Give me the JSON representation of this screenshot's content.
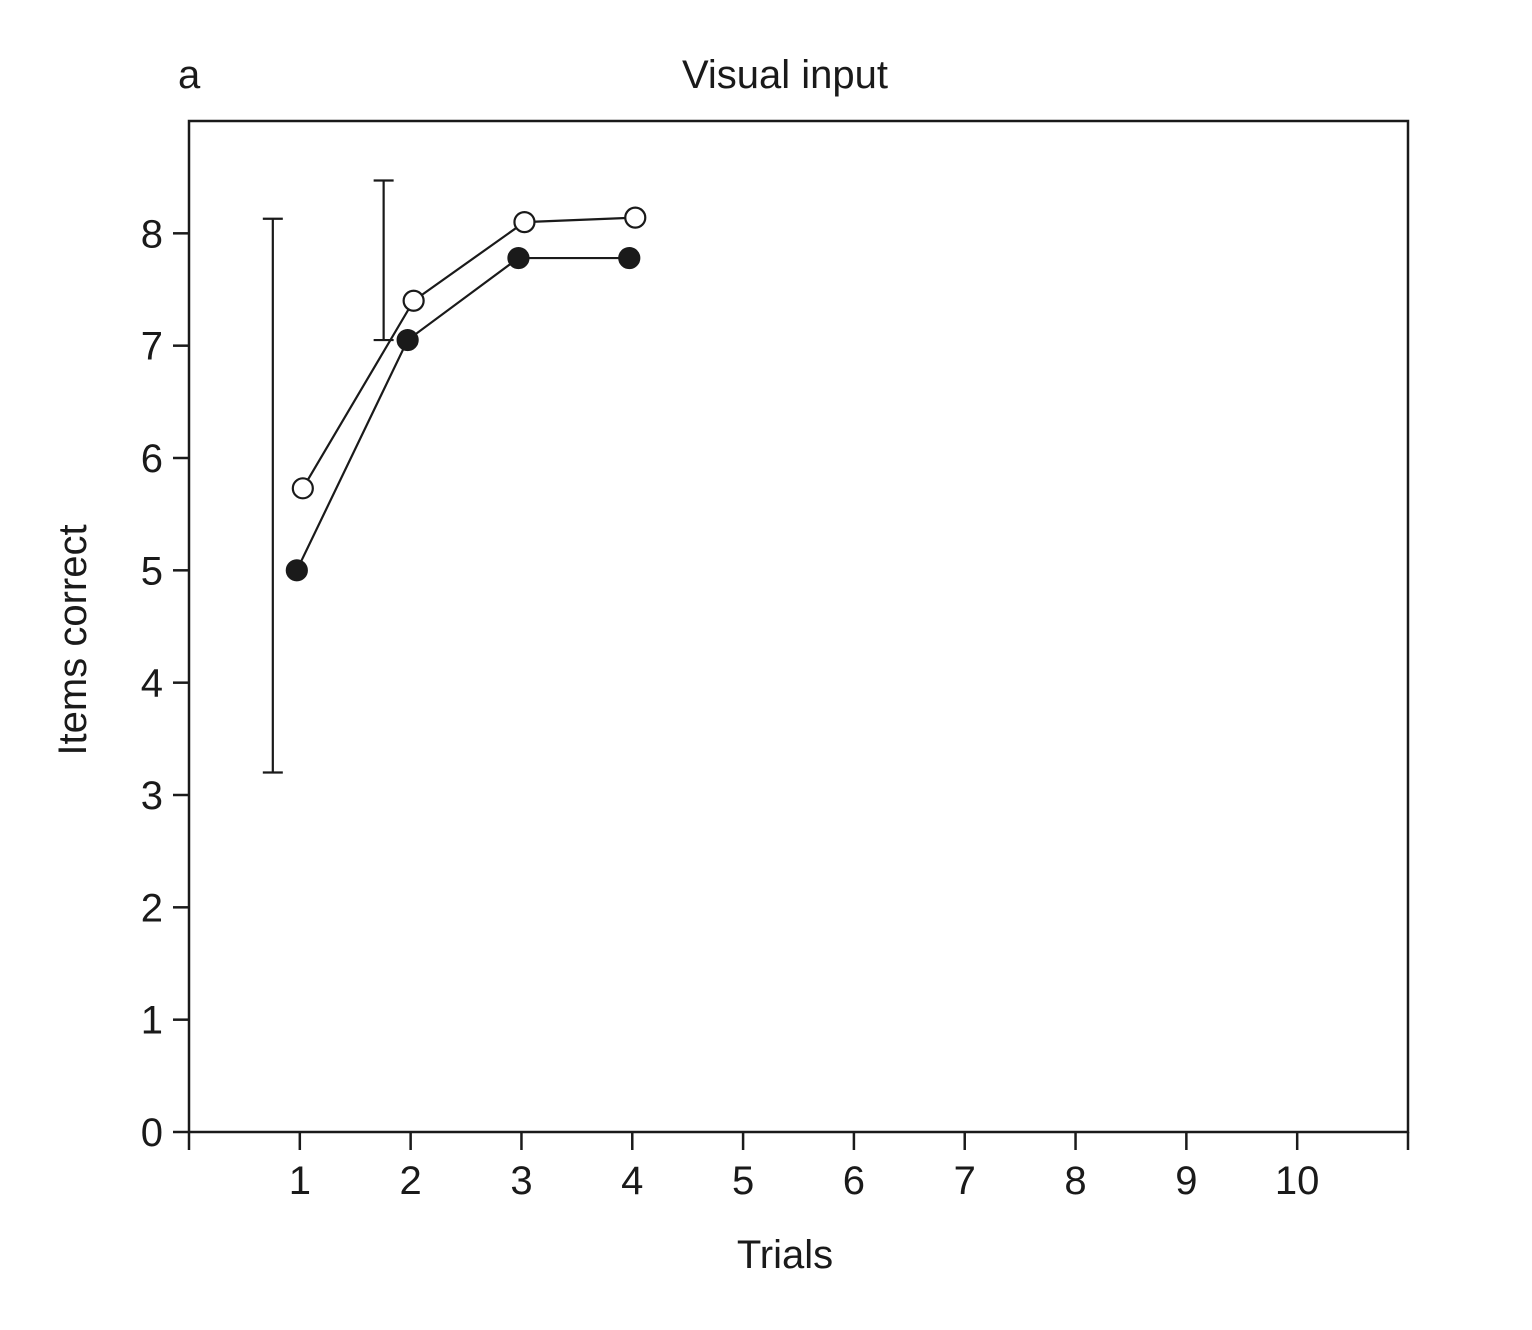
{
  "panel_label": "a",
  "chart_data": {
    "type": "line",
    "title": "Visual input",
    "xlabel": "Trials",
    "ylabel": "Items correct",
    "xlim": [
      0,
      11
    ],
    "ylim": [
      0,
      9
    ],
    "xticks": [
      1,
      2,
      3,
      4,
      5,
      6,
      7,
      8,
      9,
      10
    ],
    "yticks": [
      0,
      1,
      2,
      3,
      4,
      5,
      6,
      7,
      8
    ],
    "grid": false,
    "legend": "none",
    "series": [
      {
        "marker": "open-circle",
        "x": [
          1,
          2,
          3,
          4
        ],
        "y": [
          5.73,
          7.4,
          8.1,
          8.14
        ]
      },
      {
        "marker": "filled-circle",
        "x": [
          1,
          2,
          3,
          4
        ],
        "y": [
          5.0,
          7.05,
          7.78,
          7.78
        ]
      }
    ],
    "error_bars": [
      {
        "x": 1,
        "low": 3.2,
        "high": 8.13
      },
      {
        "x": 2,
        "low": 7.05,
        "high": 8.47
      }
    ]
  }
}
